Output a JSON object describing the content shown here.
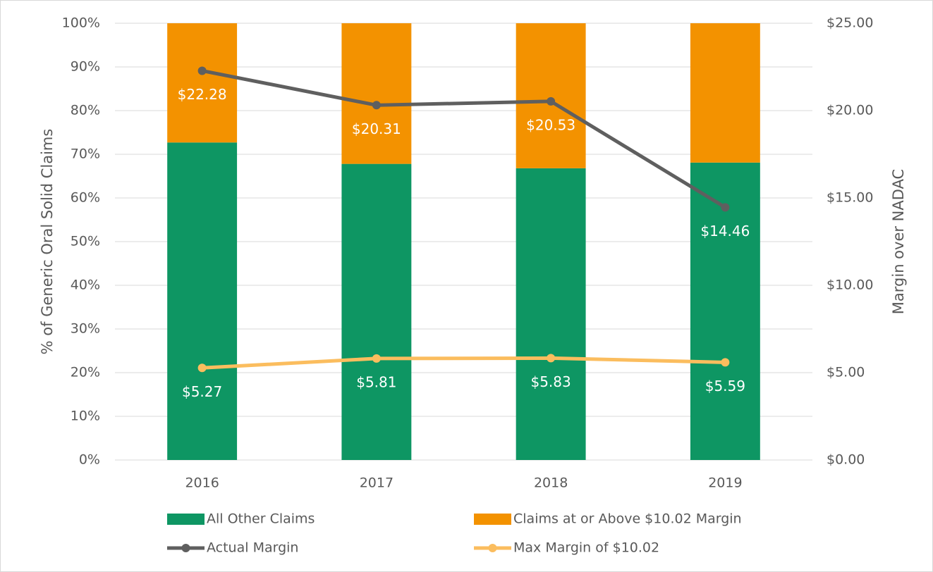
{
  "chart_data": {
    "type": "bar",
    "stacked": true,
    "categories": [
      "2016",
      "2017",
      "2018",
      "2019"
    ],
    "ylabel": "% of Generic Oral Solid Claims",
    "y2label": "Margin over NADAC",
    "ylim": [
      0,
      100
    ],
    "yticks": [
      {
        "value": 0,
        "label": "0%"
      },
      {
        "value": 10,
        "label": "10%"
      },
      {
        "value": 20,
        "label": "20%"
      },
      {
        "value": 30,
        "label": "30%"
      },
      {
        "value": 40,
        "label": "40%"
      },
      {
        "value": 50,
        "label": "50%"
      },
      {
        "value": 60,
        "label": "60%"
      },
      {
        "value": 70,
        "label": "70%"
      },
      {
        "value": 80,
        "label": "80%"
      },
      {
        "value": 90,
        "label": "90%"
      },
      {
        "value": 100,
        "label": "100%"
      }
    ],
    "y2lim": [
      0,
      25
    ],
    "y2ticks": [
      {
        "value": 0,
        "label": "$0.00"
      },
      {
        "value": 5,
        "label": "$5.00"
      },
      {
        "value": 10,
        "label": "$10.00"
      },
      {
        "value": 15,
        "label": "$15.00"
      },
      {
        "value": 20,
        "label": "$20.00"
      },
      {
        "value": 25,
        "label": "$25.00"
      }
    ],
    "grid": true,
    "legend": "bottom",
    "series": [
      {
        "name": "All Other Claims",
        "type": "bar",
        "color": "#0e9663",
        "values": [
          72.7,
          67.8,
          66.8,
          68.1
        ]
      },
      {
        "name": "Claims at or Above $10.02 Margin",
        "type": "bar",
        "color": "#f39200",
        "values": [
          27.3,
          32.2,
          33.2,
          31.9
        ]
      },
      {
        "name": "Actual Margin",
        "type": "line",
        "axis": "y2",
        "color": "#5f5f5f",
        "values": [
          22.28,
          20.31,
          20.53,
          14.46
        ],
        "value_labels": [
          "$22.28",
          "$20.31",
          "$20.53",
          "$14.46"
        ]
      },
      {
        "name": "Max Margin of $10.02",
        "type": "line",
        "axis": "y2",
        "color": "#fbbd5e",
        "values": [
          5.27,
          5.81,
          5.83,
          5.59
        ],
        "value_labels": [
          "$5.27",
          "$5.81",
          "$5.83",
          "$5.59"
        ]
      }
    ]
  }
}
